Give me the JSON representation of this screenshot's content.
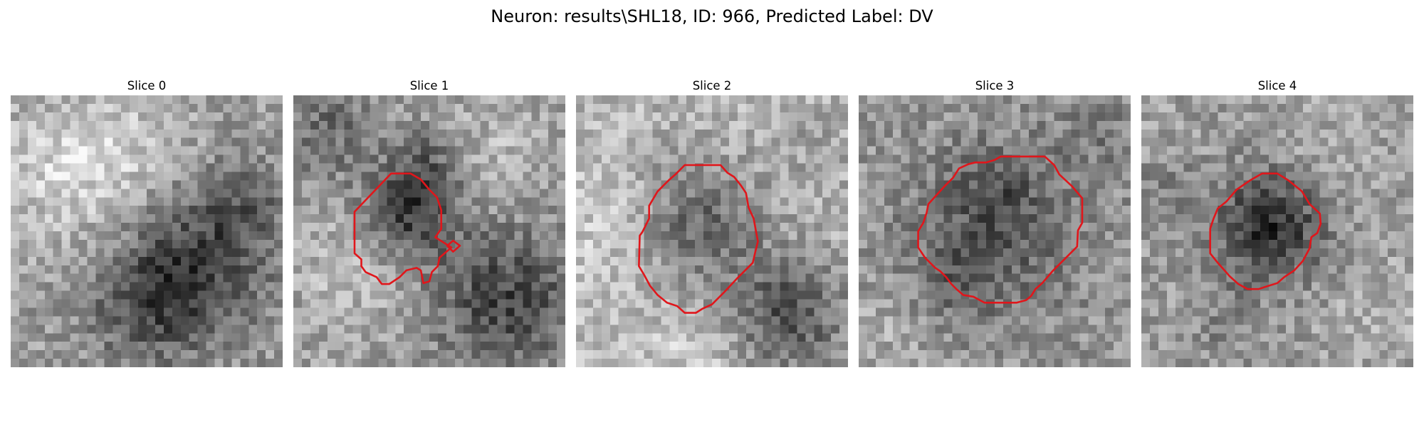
{
  "figure": {
    "title": "Neuron: results\\SHL18, ID: 966, Predicted Label: DV"
  },
  "style": {
    "contour_color": "#e0161b",
    "colormap": "grayscale"
  },
  "slices": [
    {
      "title": "Slice 0"
    },
    {
      "title": "Slice 1"
    },
    {
      "title": "Slice 2"
    },
    {
      "title": "Slice 3"
    },
    {
      "title": "Slice 4"
    }
  ]
}
